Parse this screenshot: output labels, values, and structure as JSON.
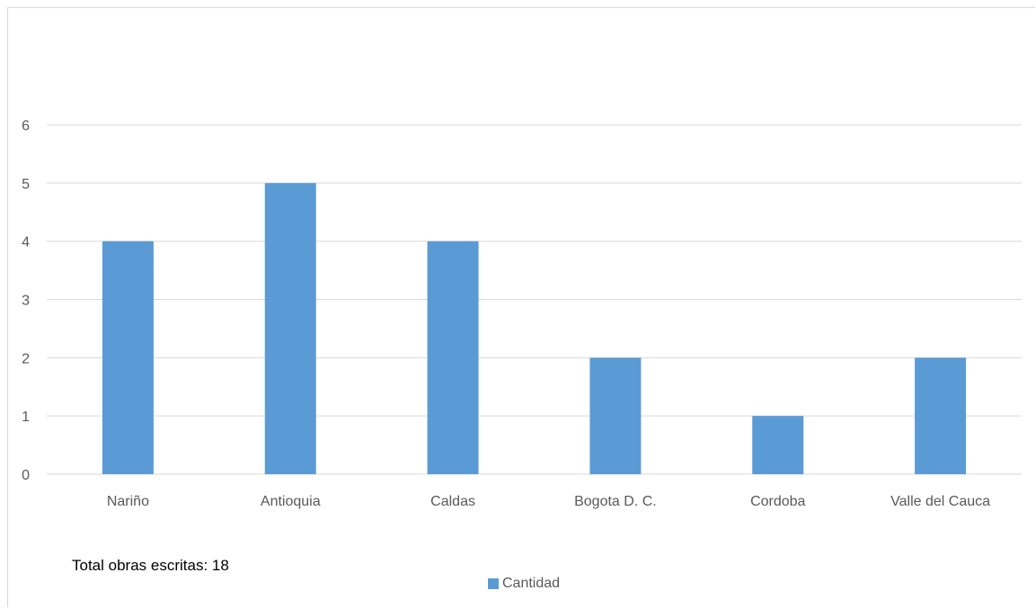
{
  "chart_data": {
    "type": "bar",
    "categories": [
      "Nariño",
      "Antioquia",
      "Caldas",
      "Bogota D. C.",
      "Cordoba",
      "Valle del Cauca"
    ],
    "series": [
      {
        "name": "Cantidad",
        "values": [
          4,
          5,
          4,
          2,
          1,
          2
        ]
      }
    ],
    "yticks": [
      "0",
      "1",
      "2",
      "3",
      "4",
      "5",
      "6"
    ],
    "ylim": [
      0,
      6
    ],
    "grid": true,
    "legend_position": "bottom",
    "bar_color": "#5b9bd5",
    "annotation": "Total obras escritas: 18"
  }
}
